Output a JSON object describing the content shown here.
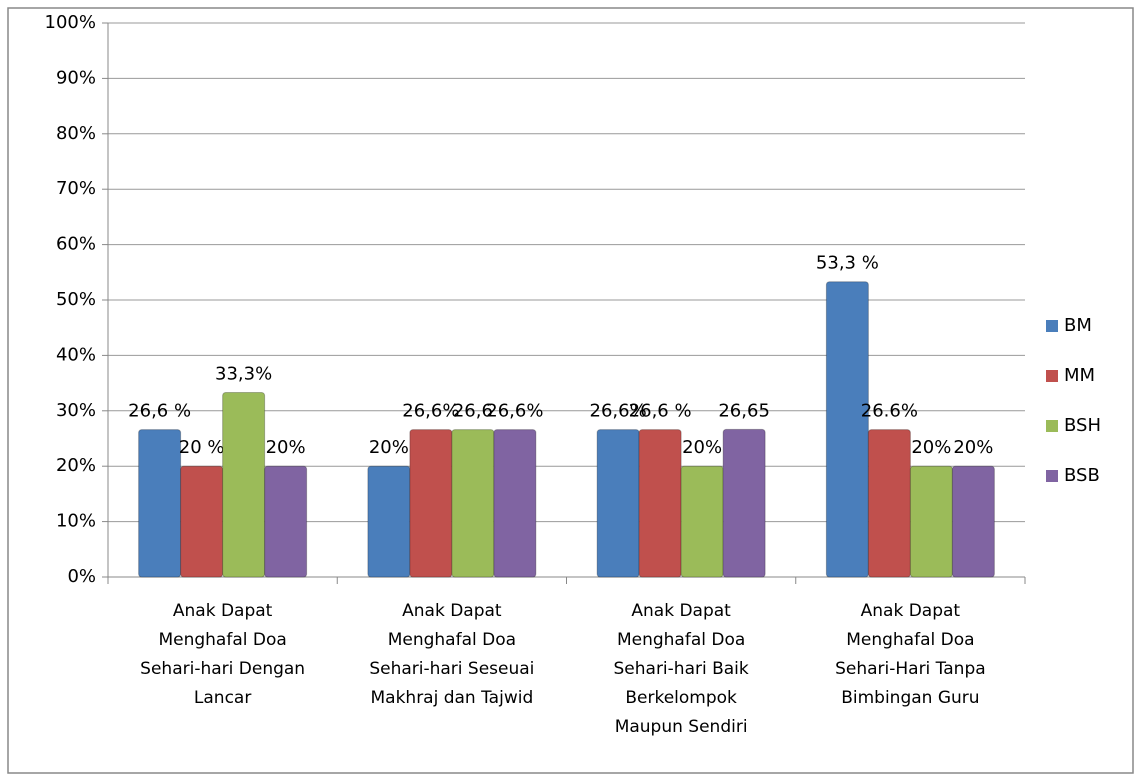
{
  "chart_data": {
    "type": "bar",
    "categories": [
      "Anak Dapat\nMenghafal Doa\nSehari-hari Dengan\nLancar",
      "Anak Dapat\nMenghafal Doa\nSehari-hari Seseuai\nMakhraj dan Tajwid",
      "Anak Dapat\nMenghafal Doa\nSehari-hari Baik\nBerkelompok\nMaupun Sendiri",
      "Anak Dapat\nMenghafal Doa\nSehari-Hari Tanpa\nBimbingan Guru"
    ],
    "series": [
      {
        "name": "BM",
        "color": "#4a7ebb",
        "values": [
          26.6,
          20,
          26.6,
          53.3
        ],
        "value_labels": [
          "26,6 %",
          "20%",
          "26,6%",
          "53,3 %"
        ]
      },
      {
        "name": "MM",
        "color": "#c0504d",
        "values": [
          20,
          26.6,
          26.6,
          26.6
        ],
        "value_labels": [
          "20 %",
          "26,6%",
          "26,6 %",
          "26.6%"
        ]
      },
      {
        "name": "BSH",
        "color": "#9bbb59",
        "values": [
          33.3,
          26.6,
          20,
          20
        ],
        "value_labels": [
          "33,3%",
          "26,6",
          "20%",
          "20%"
        ]
      },
      {
        "name": "BSB",
        "color": "#8064a2",
        "values": [
          20,
          26.6,
          26.65,
          20
        ],
        "value_labels": [
          "20%",
          "26,6%",
          "26,65",
          "20%"
        ]
      }
    ],
    "ylim": [
      0,
      100
    ],
    "yticks": [
      {
        "value": 0,
        "label": "0%"
      },
      {
        "value": 10,
        "label": "10%"
      },
      {
        "value": 20,
        "label": "20%"
      },
      {
        "value": 30,
        "label": "30%"
      },
      {
        "value": 40,
        "label": "40%"
      },
      {
        "value": 50,
        "label": "50%"
      },
      {
        "value": 60,
        "label": "60%"
      },
      {
        "value": 70,
        "label": "70%"
      },
      {
        "value": 80,
        "label": "80%"
      },
      {
        "value": 90,
        "label": "90%"
      },
      {
        "value": 100,
        "label": "100%"
      }
    ],
    "grid": true,
    "legend": "right"
  }
}
